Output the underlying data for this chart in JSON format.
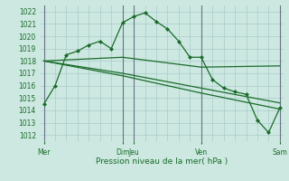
{
  "title": "",
  "xlabel": "Pression niveau de la mer( hPa )",
  "ylabel": "",
  "background_color": "#cce8e0",
  "grid_color": "#aacccc",
  "line_color": "#1a6b2a",
  "vline_color": "#4a4a6a",
  "ylim": [
    1011.5,
    1022.5
  ],
  "yticks": [
    1012,
    1013,
    1014,
    1015,
    1016,
    1017,
    1018,
    1019,
    1020,
    1021,
    1022
  ],
  "xlim": [
    -0.3,
    21.3
  ],
  "series1_x": [
    0,
    1,
    2,
    3,
    4,
    5,
    6,
    7,
    8,
    9,
    10,
    11,
    12,
    13,
    14,
    15,
    16,
    17,
    18,
    19,
    20,
    21
  ],
  "series1_y": [
    1014.5,
    1016.0,
    1018.5,
    1018.8,
    1019.3,
    1019.6,
    1019.0,
    1021.1,
    1021.6,
    1021.9,
    1021.2,
    1020.6,
    1019.6,
    1018.3,
    1018.3,
    1016.5,
    1015.8,
    1015.5,
    1015.3,
    1013.2,
    1012.2,
    1014.2
  ],
  "series2_x": [
    0,
    7,
    14,
    21
  ],
  "series2_y": [
    1018.0,
    1018.3,
    1017.5,
    1017.6
  ],
  "series3_x": [
    0,
    7,
    14,
    21
  ],
  "series3_y": [
    1018.0,
    1017.0,
    1015.8,
    1014.6
  ],
  "series4_x": [
    0,
    7,
    14,
    21
  ],
  "series4_y": [
    1018.0,
    1016.8,
    1015.4,
    1014.1
  ],
  "major_xtick_positions": [
    0,
    7,
    8,
    14,
    21
  ],
  "major_xtick_labels": [
    "Mer",
    "Dim",
    "Jeu",
    "Ven",
    "Sam"
  ],
  "vline_positions": [
    0,
    7,
    8,
    14,
    21
  ],
  "minor_xtick_count": 22
}
